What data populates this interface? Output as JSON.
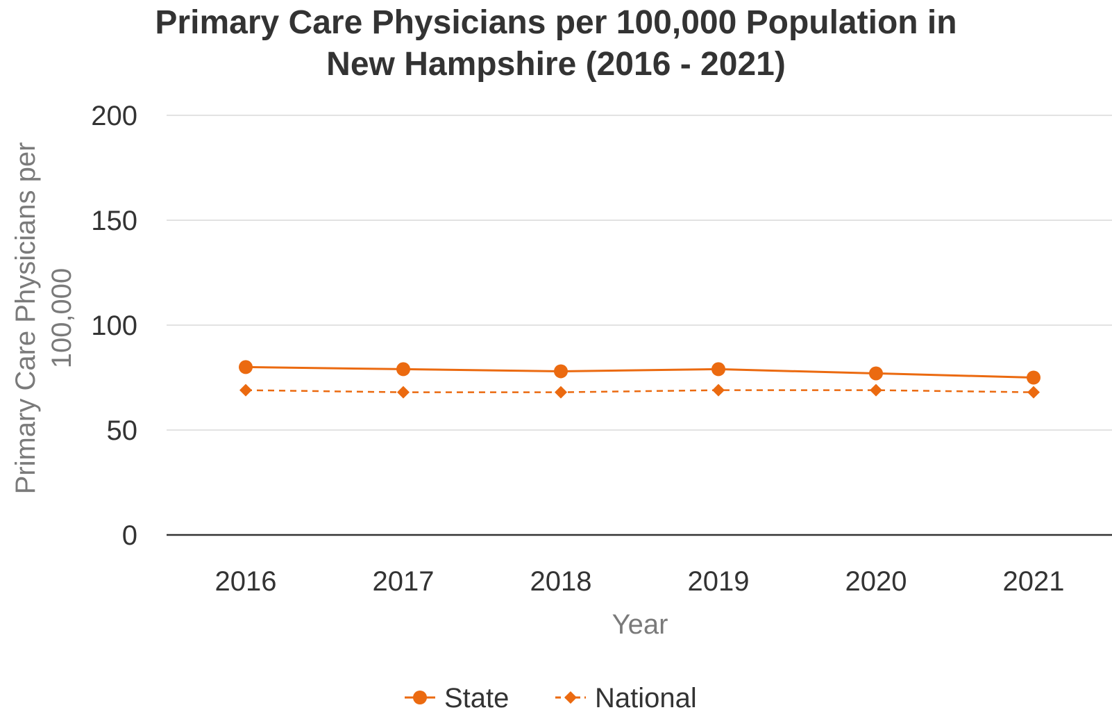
{
  "chart_data": {
    "type": "line",
    "title_lines": [
      "Primary Care Physicians per 100,000 Population in",
      "New Hampshire (2016 - 2021)"
    ],
    "xlabel": "Year",
    "ylabel_lines": [
      "Primary Care Physicians per",
      "100,000"
    ],
    "categories": [
      "2016",
      "2017",
      "2018",
      "2019",
      "2020",
      "2021"
    ],
    "ylim": [
      0,
      200
    ],
    "yticks": [
      "0",
      "50",
      "100",
      "150",
      "200"
    ],
    "grid": true,
    "legend_position": "bottom",
    "series": [
      {
        "name": "State",
        "values": [
          80,
          79,
          78,
          79,
          77,
          75
        ],
        "color": "#EB6A10",
        "line_style": "solid",
        "marker": "circle"
      },
      {
        "name": "National",
        "values": [
          69,
          68,
          68,
          69,
          69,
          68
        ],
        "color": "#EB6A10",
        "line_style": "dashed",
        "marker": "diamond"
      }
    ]
  },
  "colors": {
    "gridline": "#e2e2e2",
    "baseline": "#333333",
    "text": "#333333",
    "axis_title": "#7a7a7a"
  }
}
